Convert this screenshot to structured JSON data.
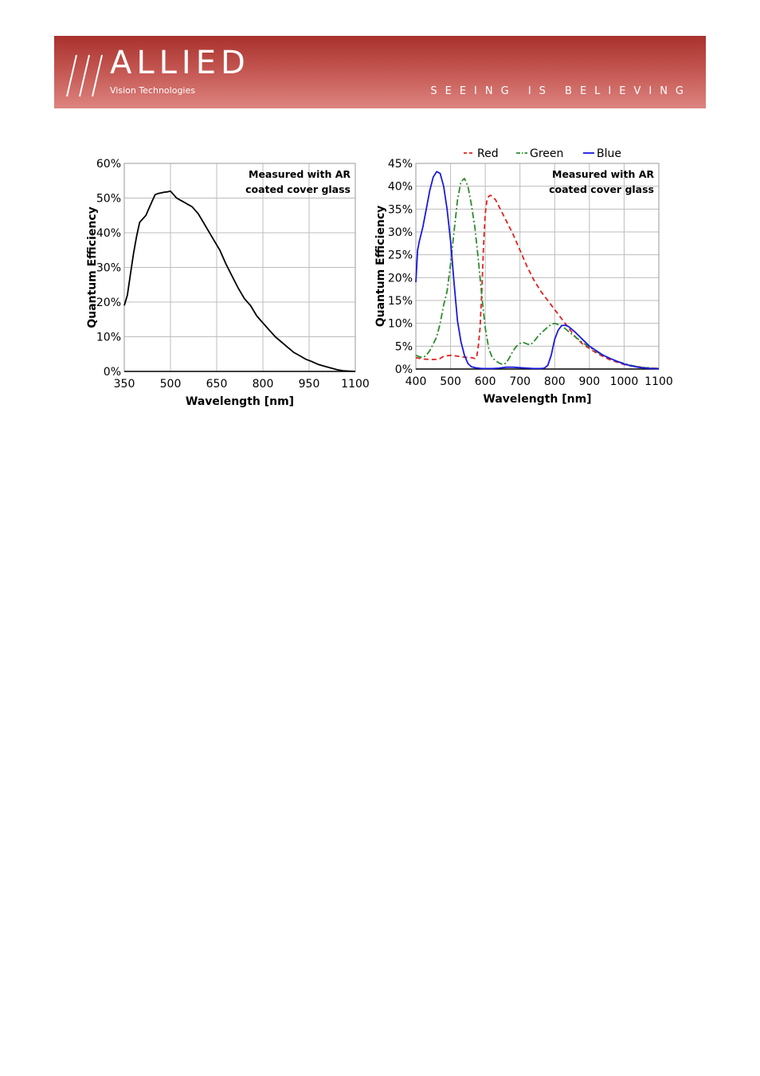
{
  "header": {
    "logo_word": "ALLIED",
    "logo_sub": "Vision Technologies",
    "tagline": "SEEING IS BELIEVING",
    "colors": {
      "banner_top": "#a8312d",
      "banner_bottom": "#dd8480"
    }
  },
  "chart_data": [
    {
      "type": "line",
      "title": "",
      "xlabel": "Wavelength [nm]",
      "ylabel": "Quantum Efficiency",
      "annotation": [
        "Measured with AR",
        "coated cover glass"
      ],
      "xlim": [
        350,
        1100
      ],
      "ylim": [
        0,
        60
      ],
      "xticks": [
        350,
        500,
        650,
        800,
        950,
        1100
      ],
      "yticks": [
        0,
        10,
        20,
        30,
        40,
        50,
        60
      ],
      "ytick_labels": [
        "0%",
        "10%",
        "20%",
        "30%",
        "40%",
        "50%",
        "60%"
      ],
      "grid": true,
      "series": [
        {
          "color": "#000000",
          "dash": "",
          "x": [
            350,
            360,
            370,
            380,
            390,
            400,
            410,
            420,
            430,
            440,
            450,
            460,
            470,
            480,
            490,
            500,
            510,
            520,
            530,
            540,
            550,
            560,
            570,
            580,
            590,
            600,
            620,
            640,
            660,
            680,
            700,
            720,
            740,
            760,
            770,
            780,
            800,
            820,
            840,
            860,
            880,
            900,
            920,
            940,
            960,
            980,
            1000,
            1020,
            1040,
            1060,
            1080,
            1100
          ],
          "values": [
            19,
            22,
            28,
            34,
            39,
            43,
            44,
            45,
            47,
            49,
            51,
            51.3,
            51.5,
            51.7,
            51.8,
            52,
            51,
            50,
            49.5,
            49,
            48.5,
            48,
            47.5,
            46.5,
            45.5,
            44,
            41,
            38,
            35,
            31,
            27.5,
            24,
            21,
            19,
            17.5,
            16,
            14,
            12,
            10,
            8.5,
            7,
            5.5,
            4.5,
            3.5,
            2.8,
            2,
            1.5,
            1,
            0.5,
            0.2,
            0.1,
            0
          ]
        }
      ]
    },
    {
      "type": "line",
      "title": "",
      "xlabel": "Wavelength [nm]",
      "ylabel": "Quantum Efficiency",
      "annotation": [
        "Measured with AR",
        "coated cover glass"
      ],
      "legend_position": "top",
      "xlim": [
        400,
        1100
      ],
      "ylim": [
        0,
        45
      ],
      "xticks": [
        400,
        500,
        600,
        700,
        800,
        900,
        1000,
        1100
      ],
      "yticks": [
        0,
        5,
        10,
        15,
        20,
        25,
        30,
        35,
        40,
        45
      ],
      "ytick_labels": [
        "0%",
        "5%",
        "10%",
        "15%",
        "20%",
        "25%",
        "30%",
        "35%",
        "40%",
        "45%"
      ],
      "grid": true,
      "series": [
        {
          "name": "Red",
          "color": "#e0201e",
          "dash": "6,4",
          "x": [
            400,
            420,
            440,
            460,
            470,
            480,
            500,
            520,
            540,
            560,
            570,
            575,
            580,
            585,
            590,
            595,
            600,
            605,
            610,
            615,
            620,
            630,
            640,
            660,
            680,
            700,
            720,
            740,
            760,
            780,
            800,
            820,
            840,
            860,
            880,
            900,
            920,
            940,
            960,
            980,
            1000,
            1020,
            1040,
            1060,
            1080,
            1100
          ],
          "values": [
            2.5,
            2.2,
            2.1,
            2.1,
            2.3,
            2.8,
            3,
            2.8,
            2.6,
            2.5,
            2.3,
            2.5,
            5,
            9,
            17,
            27,
            34,
            37,
            37.8,
            38,
            37.8,
            37,
            35.5,
            32.5,
            29.5,
            26,
            22.5,
            19.5,
            17,
            15,
            13,
            11,
            9,
            7,
            5.5,
            4.5,
            3.5,
            2.7,
            2,
            1.5,
            1,
            0.7,
            0.5,
            0.3,
            0.2,
            0.1
          ]
        },
        {
          "name": "Green",
          "color": "#2e8b2e",
          "dash": "8,3,2,3",
          "x": [
            400,
            410,
            420,
            430,
            440,
            450,
            460,
            470,
            480,
            490,
            500,
            510,
            520,
            530,
            540,
            550,
            560,
            570,
            580,
            590,
            600,
            610,
            620,
            630,
            640,
            650,
            660,
            670,
            680,
            690,
            700,
            710,
            720,
            730,
            740,
            750,
            760,
            770,
            780,
            790,
            800,
            820,
            840,
            860,
            880,
            900,
            920,
            940,
            960,
            980,
            1000,
            1020,
            1040,
            1060,
            1080,
            1100
          ],
          "values": [
            3,
            2.7,
            2.5,
            3,
            4,
            5.5,
            7,
            10,
            14,
            17,
            23,
            30,
            37,
            41,
            41.7,
            40,
            36,
            31,
            24,
            16,
            9,
            4.5,
            2.5,
            1.8,
            1.3,
            1,
            1.3,
            2.5,
            4,
            5,
            5.6,
            5.8,
            5.5,
            5.3,
            6,
            7,
            7.8,
            8.5,
            9.2,
            9.8,
            10,
            9.5,
            8.2,
            7,
            5.8,
            4.8,
            3.8,
            3,
            2.3,
            1.7,
            1.2,
            0.8,
            0.5,
            0.3,
            0.2,
            0.1
          ]
        },
        {
          "name": "Blue",
          "color": "#1a1adc",
          "dash": "",
          "x": [
            400,
            405,
            410,
            420,
            430,
            440,
            450,
            460,
            470,
            480,
            490,
            500,
            510,
            520,
            530,
            540,
            550,
            560,
            570,
            580,
            590,
            600,
            620,
            640,
            660,
            680,
            700,
            720,
            740,
            760,
            770,
            780,
            790,
            800,
            810,
            820,
            830,
            840,
            860,
            880,
            900,
            920,
            940,
            960,
            980,
            1000,
            1020,
            1040,
            1060,
            1080,
            1100
          ],
          "values": [
            19,
            26,
            28,
            31,
            35,
            39,
            42,
            43.2,
            42.8,
            40,
            35,
            28,
            19,
            10.5,
            6,
            3,
            1.2,
            0.5,
            0.3,
            0.2,
            0.1,
            0.1,
            0.1,
            0.2,
            0.4,
            0.4,
            0.3,
            0.2,
            0.1,
            0.1,
            0.2,
            0.8,
            3,
            6.5,
            8.5,
            9.5,
            9.6,
            9.3,
            8,
            6.5,
            5,
            4,
            3,
            2.3,
            1.7,
            1.1,
            0.7,
            0.4,
            0.2,
            0.1,
            0.05
          ]
        }
      ]
    }
  ]
}
